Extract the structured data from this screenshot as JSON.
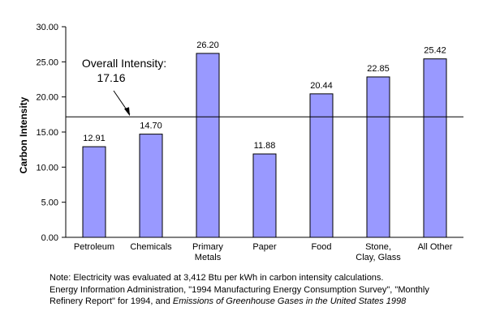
{
  "chart_data": {
    "type": "bar",
    "categories": [
      [
        "Petroleum"
      ],
      [
        "Chemicals"
      ],
      [
        "Primary",
        "Metals"
      ],
      [
        "Paper"
      ],
      [
        "Food"
      ],
      [
        "Stone,",
        "Clay, Glass"
      ],
      [
        "All Other"
      ]
    ],
    "values": [
      12.91,
      14.7,
      26.2,
      11.88,
      20.44,
      22.85,
      25.42
    ],
    "data_labels": [
      "12.91",
      "14.70",
      "26.20",
      "11.88",
      "20.44",
      "22.85",
      "25.42"
    ],
    "ylabel": "Carbon Intensity",
    "ylim": [
      0,
      30
    ],
    "yticks": [
      "0.00",
      "5.00",
      "10.00",
      "15.00",
      "20.00",
      "25.00",
      "30.00"
    ],
    "grid": false,
    "reference_line": {
      "value": 17.16,
      "label_line1": "Overall Intensity:",
      "label_line2": "17.16"
    },
    "colors": {
      "bar_fill": "#9999ff",
      "bar_stroke": "#000000",
      "axis": "#000000"
    }
  },
  "notes": {
    "line1": "Note: Electricity was evaluated at 3,412 Btu per kWh in carbon intensity calculations.",
    "line2": "Energy Information Administration, \"1994 Manufacturing Energy Consumption Survey\", \"Monthly",
    "line3a": "Refinery Report\" for 1994, and ",
    "line3b": "Emissions of Greenhouse Gases in the United States 1998"
  }
}
